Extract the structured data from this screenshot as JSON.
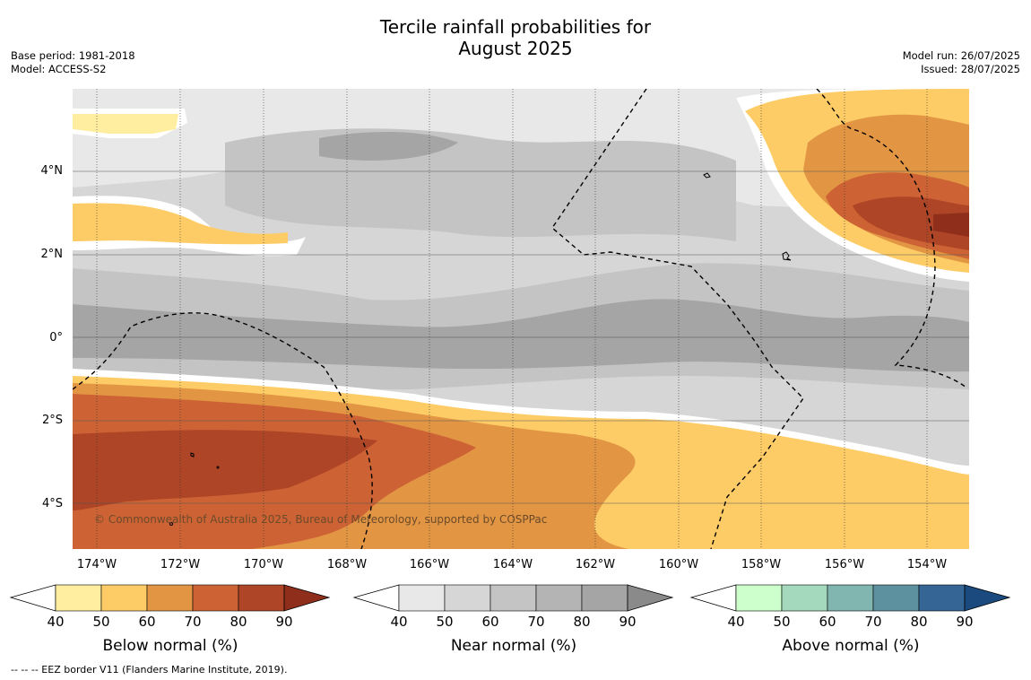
{
  "title": {
    "line1": "Tercile rainfall probabilities for",
    "line2": "August 2025"
  },
  "meta_left": {
    "base_period": "Base period: 1981-2018",
    "model": "Model: ACCESS-S2"
  },
  "meta_right": {
    "model_run": "Model run: 26/07/2025",
    "issued": "Issued: 28/07/2025"
  },
  "lat_labels": [
    "4°N",
    "2°N",
    "0°",
    "2°S",
    "4°S"
  ],
  "lon_labels": [
    "174°W",
    "172°W",
    "170°W",
    "168°W",
    "166°W",
    "164°W",
    "162°W",
    "160°W",
    "158°W",
    "156°W",
    "154°W"
  ],
  "copyright": "© Commonwealth of Australia 2025, Bureau of Meteorology, supported by COSPPac",
  "colorbars": [
    {
      "label": "Below normal (%)",
      "ticks": [
        "40",
        "50",
        "60",
        "70",
        "80",
        "90"
      ],
      "colors": [
        "#ffeea0",
        "#fecc66",
        "#e29644",
        "#cd6334",
        "#ad4526",
        "#8f2f1b"
      ]
    },
    {
      "label": "Near normal (%)",
      "ticks": [
        "40",
        "50",
        "60",
        "70",
        "80",
        "90"
      ],
      "colors": [
        "#e8e8e8",
        "#d6d6d6",
        "#c4c4c4",
        "#b4b4b4",
        "#a5a5a5",
        "#8a8a8a"
      ]
    },
    {
      "label": "Above normal (%)",
      "ticks": [
        "40",
        "50",
        "60",
        "70",
        "80",
        "90"
      ],
      "colors": [
        "#ccffcc",
        "#a4d9bd",
        "#80b5b0",
        "#5e91a0",
        "#346595",
        "#1a4a7e"
      ]
    }
  ],
  "footnote": "--  --  -- EEZ border V11 (Flanders Marine Institute, 2019)."
}
